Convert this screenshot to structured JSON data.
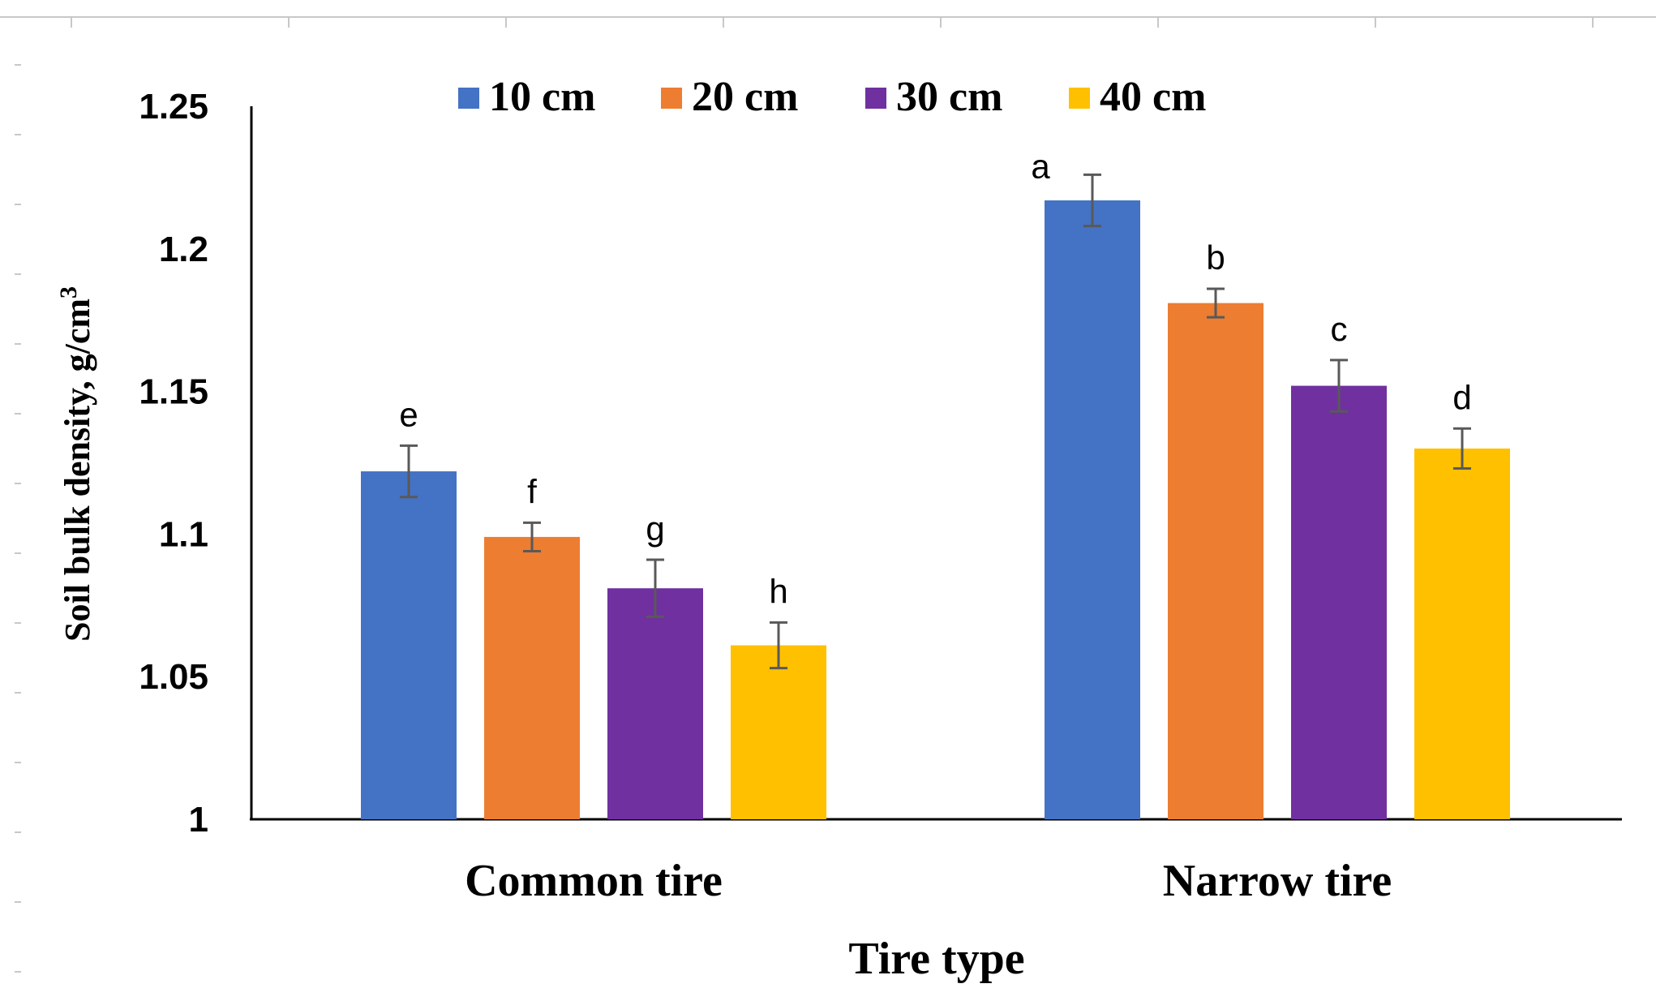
{
  "chart_data": {
    "type": "bar",
    "title": "",
    "xlabel": "Tire type",
    "ylabel": "Soil bulk density, g/cm",
    "ylabel_superscript": "3",
    "categories": [
      "Common tire",
      "Narrow tire"
    ],
    "ylim": [
      1,
      1.25
    ],
    "yticks": [
      1,
      1.05,
      1.1,
      1.15,
      1.2,
      1.25
    ],
    "ytick_labels": [
      "1",
      "1.05",
      "1.1",
      "1.15",
      "1.2",
      "1.25"
    ],
    "grid": false,
    "legend_position": "top",
    "series": [
      {
        "name": "10 cm",
        "color": "#4472C4",
        "values": [
          1.122,
          1.217
        ],
        "errors": [
          0.009,
          0.009
        ],
        "letters": [
          "e",
          "a"
        ]
      },
      {
        "name": "20 cm",
        "color": "#ED7D31",
        "values": [
          1.099,
          1.181
        ],
        "errors": [
          0.005,
          0.005
        ],
        "letters": [
          "f",
          "b"
        ]
      },
      {
        "name": "30 cm",
        "color": "#7030A0",
        "values": [
          1.081,
          1.152
        ],
        "errors": [
          0.01,
          0.009
        ],
        "letters": [
          "g",
          "c"
        ]
      },
      {
        "name": "40 cm",
        "color": "#FFC000",
        "values": [
          1.061,
          1.13
        ],
        "errors": [
          0.008,
          0.007
        ],
        "letters": [
          "h",
          "d"
        ]
      }
    ]
  }
}
